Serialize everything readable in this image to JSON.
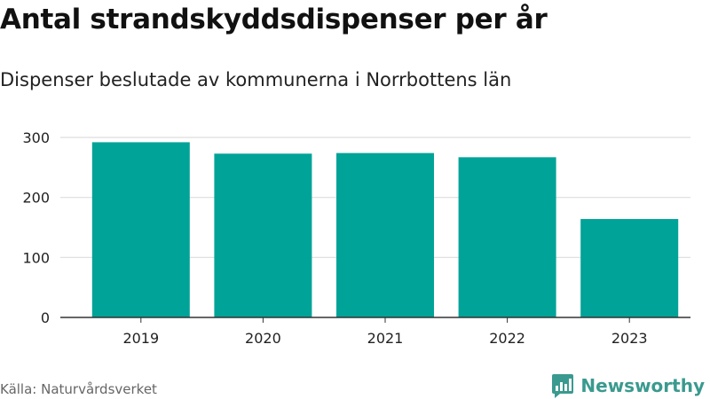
{
  "chart_data": {
    "type": "bar",
    "title": "Antal strandskyddsdispenser per år",
    "subtitle": "Dispenser beslutade av kommunerna i Norrbottens län",
    "categories": [
      "2019",
      "2020",
      "2021",
      "2022",
      "2023"
    ],
    "values": [
      292,
      273,
      274,
      267,
      164
    ],
    "yticks": [
      0,
      100,
      200,
      300
    ],
    "ylim": [
      0,
      300
    ],
    "xlabel": "",
    "ylabel": "",
    "grid": true,
    "bar_color": "#00a398"
  },
  "source": "Källa: Naturvårdsverket",
  "brand": {
    "name": "Newsworthy",
    "icon": "newsworthy-logo-icon",
    "color": "#3a9a8f"
  }
}
